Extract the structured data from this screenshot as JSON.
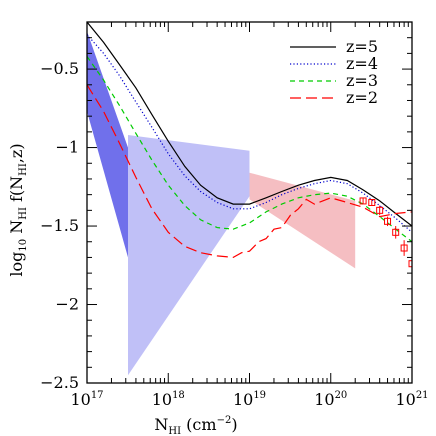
{
  "chart_data": {
    "type": "line",
    "xscale": "log",
    "xlim": [
      1e+17,
      1e+21
    ],
    "ylim": [
      -2.5,
      -0.2
    ],
    "x_ticks": [
      {
        "value": 1e+17,
        "base": "10",
        "exp": "17"
      },
      {
        "value": 1e+18,
        "base": "10",
        "exp": "18"
      },
      {
        "value": 1e+19,
        "base": "10",
        "exp": "19"
      },
      {
        "value": 1e+20,
        "base": "10",
        "exp": "20"
      },
      {
        "value": 1e+21,
        "base": "10",
        "exp": "21"
      }
    ],
    "y_ticks": [
      {
        "value": -2.5,
        "label": "−2.5"
      },
      {
        "value": -2.0,
        "label": "−2"
      },
      {
        "value": -1.5,
        "label": "−1.5"
      },
      {
        "value": -1.0,
        "label": "−1"
      },
      {
        "value": -0.5,
        "label": "−0.5"
      }
    ],
    "xlabel": {
      "main": "N",
      "sub": "HI",
      "rest": " (cm",
      "sup": "−2",
      "end": ")"
    },
    "ylabel": {
      "pre": "log",
      "pre_sub": "10",
      "mid": " N",
      "mid_sub": "HI",
      "f": " f(N",
      "f_sub": "HI",
      "end": ",z)"
    },
    "legend_position": "top-right",
    "series": [
      {
        "name": "z=5",
        "color": "#000000",
        "dash": "solid",
        "x": [
          1e+17,
          1.6e+17,
          2.5e+17,
          4e+17,
          6.3e+17,
          1e+18,
          1.6e+18,
          2.5e+18,
          4e+18,
          6.3e+18,
          1e+19,
          1.6e+19,
          2.5e+19,
          4e+19,
          6.3e+19,
          1e+20,
          1.6e+20,
          2.5e+20,
          4e+20,
          6.3e+20,
          1e+21
        ],
        "y": [
          -0.2,
          -0.33,
          -0.47,
          -0.62,
          -0.79,
          -0.96,
          -1.12,
          -1.24,
          -1.32,
          -1.36,
          -1.36,
          -1.32,
          -1.28,
          -1.24,
          -1.21,
          -1.19,
          -1.21,
          -1.27,
          -1.34,
          -1.42,
          -1.5
        ]
      },
      {
        "name": "z=4",
        "color": "#0000cc",
        "dash": "dotted",
        "x": [
          1e+17,
          1.6e+17,
          2.5e+17,
          4e+17,
          6.3e+17,
          1e+18,
          1.6e+18,
          2.5e+18,
          4e+18,
          6.3e+18,
          1e+19,
          1.6e+19,
          2.5e+19,
          4e+19,
          6.3e+19,
          1e+20,
          1.6e+20,
          2.5e+20,
          4e+20,
          6.3e+20,
          1e+21
        ],
        "y": [
          -0.28,
          -0.4,
          -0.54,
          -0.71,
          -0.87,
          -1.04,
          -1.18,
          -1.28,
          -1.35,
          -1.39,
          -1.39,
          -1.35,
          -1.3,
          -1.26,
          -1.23,
          -1.21,
          -1.23,
          -1.29,
          -1.37,
          -1.45,
          -1.54
        ]
      },
      {
        "name": "z=3",
        "color": "#00cc00",
        "dash": "dashed",
        "x": [
          1e+17,
          1.6e+17,
          2.5e+17,
          4e+17,
          6.3e+17,
          1e+18,
          1.6e+18,
          2.5e+18,
          4e+18,
          6.3e+18,
          1e+19,
          1.6e+19,
          2.5e+19,
          4e+19,
          6.3e+19,
          1e+20,
          1.6e+20,
          2.5e+20,
          4e+20,
          6.3e+20,
          1e+21
        ],
        "y": [
          -0.42,
          -0.57,
          -0.73,
          -0.91,
          -1.08,
          -1.24,
          -1.37,
          -1.46,
          -1.51,
          -1.52,
          -1.48,
          -1.41,
          -1.36,
          -1.32,
          -1.3,
          -1.29,
          -1.31,
          -1.36,
          -1.44,
          -1.52,
          -1.6
        ]
      },
      {
        "name": "z=2",
        "color": "#ff0000",
        "dash": "longdash",
        "x": [
          1e+17,
          1.6e+17,
          2.5e+17,
          4e+17,
          6.3e+17,
          1e+18,
          1.6e+18,
          2.5e+18,
          4e+18,
          6.3e+18,
          8e+18,
          1e+19,
          1.3e+19,
          1.6e+19,
          2e+19,
          2.5e+19,
          3.2e+19,
          4e+19,
          5e+19,
          6.3e+19,
          1e+20,
          1.6e+20,
          2.5e+20,
          4e+20,
          6.3e+20,
          1e+21
        ],
        "y": [
          -0.6,
          -0.77,
          -0.97,
          -1.19,
          -1.39,
          -1.54,
          -1.63,
          -1.67,
          -1.69,
          -1.7,
          -1.67,
          -1.66,
          -1.6,
          -1.58,
          -1.52,
          -1.51,
          -1.43,
          -1.39,
          -1.33,
          -1.36,
          -1.32,
          -1.35,
          -1.38,
          -1.44,
          -1.42,
          -1.41
        ]
      }
    ],
    "observations": {
      "color": "#ff0000",
      "x": [
        2.5e+20,
        3.2e+20,
        4e+20,
        5e+20,
        6.3e+20,
        8e+20,
        1e+21
      ],
      "y": [
        -1.34,
        -1.35,
        -1.4,
        -1.47,
        -1.54,
        -1.64,
        -1.74
      ],
      "err": [
        0.02,
        0.02,
        0.03,
        0.03,
        0.04,
        0.05,
        0.05
      ]
    },
    "bands": [
      {
        "color": "#5050e6",
        "opacity": 0.82,
        "points": [
          [
            1e+17,
            -0.26
          ],
          [
            3.2e+17,
            -1.0
          ],
          [
            3.2e+17,
            -1.7
          ],
          [
            1e+17,
            -0.77
          ]
        ]
      },
      {
        "color": "#a8a8f4",
        "opacity": 0.72,
        "points": [
          [
            3.2e+17,
            -0.92
          ],
          [
            1e+19,
            -1.02
          ],
          [
            1e+19,
            -1.31
          ],
          [
            3.2e+17,
            -2.45
          ]
        ]
      },
      {
        "color": "#f2a8ae",
        "opacity": 0.75,
        "points": [
          [
            1e+19,
            -1.16
          ],
          [
            2e+20,
            -1.34
          ],
          [
            2e+20,
            -1.77
          ],
          [
            1e+19,
            -1.33
          ]
        ]
      }
    ]
  }
}
